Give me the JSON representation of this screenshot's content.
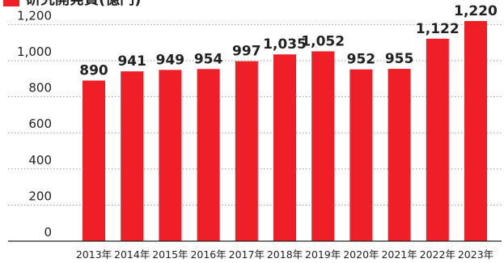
{
  "chart_data": {
    "type": "bar",
    "title": "研究開発費(億円)",
    "categories": [
      "2013年",
      "2014年",
      "2015年",
      "2016年",
      "2017年",
      "2018年",
      "2019年",
      "2020年",
      "2021年",
      "2022年",
      "2023年"
    ],
    "values": [
      890,
      941,
      949,
      954,
      997,
      1035,
      1052,
      952,
      955,
      1122,
      1220
    ],
    "value_labels": [
      "890",
      "941",
      "949",
      "954",
      "997",
      "1,035",
      "1,052",
      "952",
      "955",
      "1,122",
      "1,220"
    ],
    "ylim": [
      0,
      1300
    ],
    "yticks": [
      0,
      200,
      400,
      600,
      800,
      1000,
      1200
    ],
    "ytick_labels": [
      "0",
      "200",
      "400",
      "600",
      "800",
      "1,000",
      "1,200"
    ],
    "xlabel": "",
    "ylabel": "",
    "grid": true,
    "legend": "none"
  },
  "colors": {
    "bar": "#ee1f26",
    "title_marker": "#ee1f26",
    "grid": "#999999",
    "axis": "#222222"
  }
}
